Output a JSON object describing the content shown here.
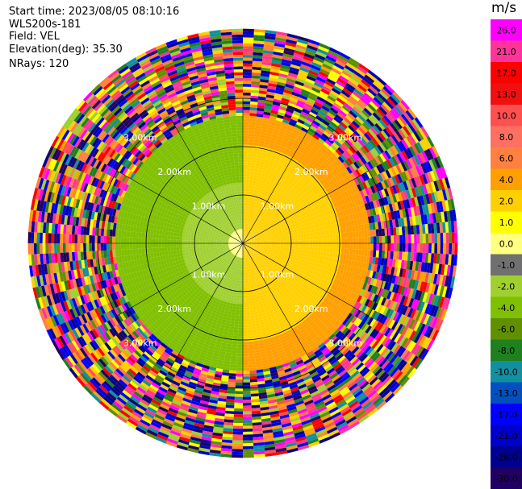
{
  "header": {
    "start_time": "Start time: 2023/08/05 08:10:16",
    "instrument": "WLS200s-181",
    "field": "Field: VEL",
    "elevation": "Elevation(deg): 35.30",
    "nrays": "NRays: 120"
  },
  "colorbar": {
    "unit": "m/s",
    "ticks": [
      "26.0",
      "21.0",
      "17.0",
      "13.0",
      "10.0",
      "8.0",
      "6.0",
      "4.0",
      "2.0",
      "1.0",
      "0.0",
      "-1.0",
      "-2.0",
      "-4.0",
      "-6.0",
      "-8.0",
      "-10.0",
      "-13.0",
      "-17.0",
      "-21.0",
      "-26.0",
      "-30.0"
    ],
    "colors": [
      "#ff00ff",
      "#ff3399",
      "#ff0000",
      "#f01010",
      "#ff5050",
      "#ff7060",
      "#ff8040",
      "#ffa000",
      "#ffd000",
      "#ffff00",
      "#ffff80",
      "#707070",
      "#a0d030",
      "#80c000",
      "#609000",
      "#208020",
      "#1090a0",
      "#0050c0",
      "#0000ff",
      "#0000cc",
      "#000090",
      "#200060"
    ]
  },
  "chart_data": {
    "type": "ppi",
    "field": "VEL",
    "nrays": 120,
    "range_rings_km": [
      1.0,
      2.0,
      3.0
    ],
    "range_ring_labels": [
      "1.00km",
      "2.00km",
      "3.00km"
    ],
    "outer_labels": [
      "3.00km",
      "3.00km",
      "3.00km",
      "3.00km"
    ],
    "radial_profile": [
      {
        "range_km": [
          0.0,
          0.25
        ],
        "east_half": "2.0",
        "west_half": "0.0"
      },
      {
        "range_km": [
          0.25,
          1.25
        ],
        "east_half": "2.0",
        "west_half": "-2.0"
      },
      {
        "range_km": [
          1.25,
          2.0
        ],
        "east_half": "2.0",
        "west_half": "-4.0"
      },
      {
        "range_km": [
          2.0,
          2.6
        ],
        "east_half": "4.0",
        "west_half": "-4.0"
      },
      {
        "range_km": [
          2.6,
          4.4
        ],
        "east_half": "noise",
        "west_half": "noise"
      }
    ]
  }
}
